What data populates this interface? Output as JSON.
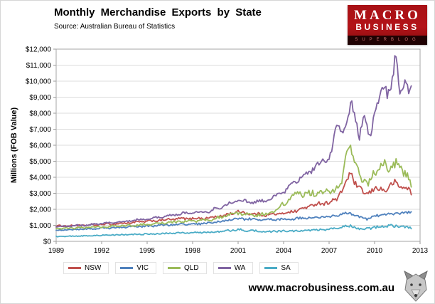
{
  "header": {
    "source": "Source:  Australian Bureau of Statistics"
  },
  "logo": {
    "line1": "MACRO",
    "line2": "BUSINESS",
    "line3": "SUPERBLOG",
    "bg_color": "#b31318"
  },
  "footer": {
    "url": "www.macrobusiness.com.au"
  },
  "chart_data": {
    "type": "line",
    "title": "Monthly Merchandise Exports by State",
    "xlabel": "",
    "ylabel": "Millions (FOB Value)",
    "frequency": "monthly",
    "grid": "horizontal",
    "legend_position": "bottom",
    "ylim": [
      0,
      12000
    ],
    "ytick_step": 1000,
    "ytick_prefix": "$",
    "xlim": [
      1989,
      2013
    ],
    "xticks": [
      1989,
      1992,
      1995,
      1998,
      2001,
      2004,
      2007,
      2010,
      2013
    ],
    "series": [
      {
        "name": "NSW",
        "color": "#C0504D",
        "noise": 0.05,
        "points": [
          [
            1989,
            950
          ],
          [
            1991,
            1000
          ],
          [
            1993,
            1100
          ],
          [
            1995,
            1250
          ],
          [
            1997,
            1400
          ],
          [
            1999,
            1450
          ],
          [
            2000,
            1600
          ],
          [
            2001,
            1850
          ],
          [
            2002,
            1700
          ],
          [
            2003,
            1650
          ],
          [
            2004,
            1750
          ],
          [
            2005,
            1950
          ],
          [
            2006,
            2300
          ],
          [
            2007,
            2450
          ],
          [
            2007.5,
            2600
          ],
          [
            2008.4,
            4200
          ],
          [
            2008.9,
            3400
          ],
          [
            2009.4,
            2900
          ],
          [
            2010,
            3300
          ],
          [
            2010.7,
            3200
          ],
          [
            2011.3,
            3650
          ],
          [
            2011.8,
            3400
          ],
          [
            2012.2,
            3300
          ],
          [
            2012.45,
            2900
          ]
        ]
      },
      {
        "name": "VIC",
        "color": "#4F81BD",
        "noise": 0.05,
        "points": [
          [
            1989,
            700
          ],
          [
            1991,
            760
          ],
          [
            1993,
            860
          ],
          [
            1995,
            950
          ],
          [
            1997,
            1060
          ],
          [
            1999,
            1120
          ],
          [
            2001,
            1420
          ],
          [
            2002,
            1380
          ],
          [
            2003,
            1340
          ],
          [
            2004,
            1380
          ],
          [
            2005,
            1420
          ],
          [
            2006,
            1480
          ],
          [
            2007,
            1530
          ],
          [
            2008.4,
            1750
          ],
          [
            2009,
            1480
          ],
          [
            2009.5,
            1420
          ],
          [
            2010,
            1580
          ],
          [
            2011,
            1700
          ],
          [
            2012,
            1780
          ],
          [
            2012.45,
            1850
          ]
        ]
      },
      {
        "name": "QLD",
        "color": "#9BBB59",
        "noise": 0.06,
        "points": [
          [
            1989,
            800
          ],
          [
            1991,
            860
          ],
          [
            1993,
            950
          ],
          [
            1995,
            1060
          ],
          [
            1997,
            1220
          ],
          [
            1999,
            1320
          ],
          [
            2001,
            1750
          ],
          [
            2002,
            1650
          ],
          [
            2003,
            1700
          ],
          [
            2004,
            2350
          ],
          [
            2004.6,
            2900
          ],
          [
            2005,
            2950
          ],
          [
            2006,
            3000
          ],
          [
            2007,
            3150
          ],
          [
            2007.8,
            3400
          ],
          [
            2008.3,
            6400
          ],
          [
            2008.7,
            4700
          ],
          [
            2009.2,
            3900
          ],
          [
            2009.6,
            3600
          ],
          [
            2010,
            4300
          ],
          [
            2010.5,
            4900
          ],
          [
            2011,
            4400
          ],
          [
            2011.4,
            5000
          ],
          [
            2011.8,
            4300
          ],
          [
            2012.2,
            4100
          ],
          [
            2012.45,
            3300
          ]
        ]
      },
      {
        "name": "WA",
        "color": "#8064A2",
        "noise": 0.04,
        "points": [
          [
            1989,
            900
          ],
          [
            1991,
            1020
          ],
          [
            1993,
            1200
          ],
          [
            1995,
            1400
          ],
          [
            1997,
            1700
          ],
          [
            1999,
            1850
          ],
          [
            2001,
            2550
          ],
          [
            2002,
            2450
          ],
          [
            2003,
            2550
          ],
          [
            2004,
            3050
          ],
          [
            2005,
            3900
          ],
          [
            2006,
            4600
          ],
          [
            2007,
            5200
          ],
          [
            2007.5,
            7000
          ],
          [
            2008,
            7200
          ],
          [
            2008.5,
            8400
          ],
          [
            2009,
            6600
          ],
          [
            2009.3,
            7700
          ],
          [
            2009.7,
            6400
          ],
          [
            2010,
            8200
          ],
          [
            2010.5,
            9300
          ],
          [
            2011,
            9500
          ],
          [
            2011.4,
            11300
          ],
          [
            2011.7,
            9200
          ],
          [
            2012,
            10100
          ],
          [
            2012.25,
            9200
          ],
          [
            2012.45,
            9500
          ]
        ]
      },
      {
        "name": "SA",
        "color": "#4BACC6",
        "noise": 0.09,
        "points": [
          [
            1989,
            300
          ],
          [
            1991,
            350
          ],
          [
            1993,
            400
          ],
          [
            1995,
            460
          ],
          [
            1997,
            510
          ],
          [
            1999,
            560
          ],
          [
            2001,
            720
          ],
          [
            2002,
            650
          ],
          [
            2003,
            600
          ],
          [
            2004,
            640
          ],
          [
            2005,
            660
          ],
          [
            2006,
            700
          ],
          [
            2007,
            780
          ],
          [
            2008.4,
            950
          ],
          [
            2009,
            760
          ],
          [
            2010,
            860
          ],
          [
            2011,
            960
          ],
          [
            2012,
            900
          ],
          [
            2012.45,
            800
          ]
        ]
      }
    ]
  }
}
